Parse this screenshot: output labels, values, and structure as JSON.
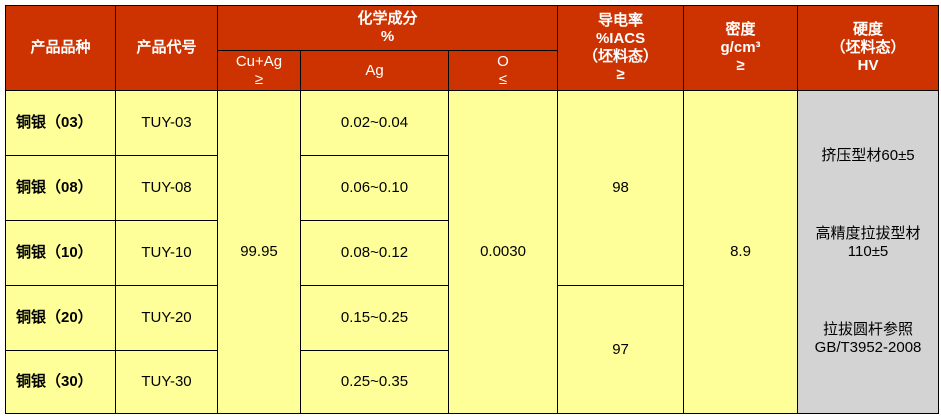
{
  "table": {
    "headers": {
      "product_type": "产品品种",
      "product_code": "产品代号",
      "chemical": [
        "化学成分",
        "%"
      ],
      "cu_ag": [
        "Cu+Ag",
        "≥"
      ],
      "ag": "Ag",
      "o": [
        "O",
        "≤"
      ],
      "conductivity": [
        "导电率",
        "%IACS",
        "（坯料态）",
        "≥"
      ],
      "density": [
        "密度",
        "g/cm³",
        "≥"
      ],
      "hardness": [
        "硬度",
        "（坯料态）",
        "HV"
      ]
    },
    "rows": [
      [
        "铜银（03）",
        "TUY-03",
        "0.02~0.04"
      ],
      [
        "铜银（08）",
        "TUY-08",
        "0.06~0.10"
      ],
      [
        "铜银（10）",
        "TUY-10",
        "0.08~0.12"
      ],
      [
        "铜银（20）",
        "TUY-20",
        "0.15~0.25"
      ],
      [
        "铜银（30）",
        "TUY-30",
        "0.25~0.35"
      ]
    ],
    "cu_ag_value": "99.95",
    "o_value": "0.0030",
    "conductivity_values": [
      "98",
      "97"
    ],
    "density_value": "8.9",
    "hardness_values": [
      [
        "挤压型材60±5"
      ],
      [
        "高精度拉拔型材",
        "110±5"
      ],
      [
        "拉拔圆杆参照",
        "GB/T3952-2008"
      ]
    ]
  }
}
